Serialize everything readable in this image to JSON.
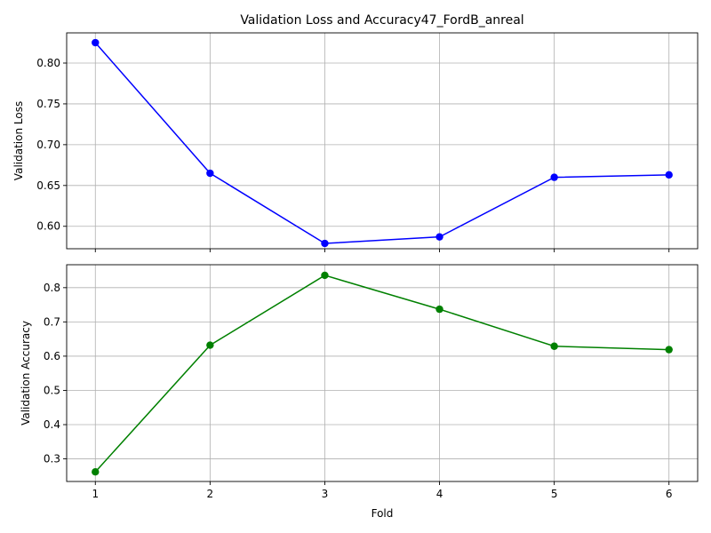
{
  "chart_data": {
    "title": "Validation Loss and Accuracy47_FordB_anreal",
    "xlabel": "Fold",
    "x": [
      1,
      2,
      3,
      4,
      5,
      6
    ],
    "xlim": [
      0.75,
      6.25
    ],
    "grid": true,
    "panels": [
      {
        "type": "line",
        "ylabel": "Validation Loss",
        "ylim": [
          0.5725,
          0.837
        ],
        "yticks": [
          "0.60",
          "0.65",
          "0.70",
          "0.75",
          "0.80"
        ],
        "series": [
          {
            "values": [
              0.825,
              0.665,
              0.579,
              0.587,
              0.66,
              0.663
            ],
            "color": "#0000ff",
            "marker": "circle"
          }
        ]
      },
      {
        "type": "line",
        "ylabel": "Validation Accuracy",
        "ylim": [
          0.234,
          0.867
        ],
        "yticks": [
          "0.3",
          "0.4",
          "0.5",
          "0.6",
          "0.7",
          "0.8"
        ],
        "series": [
          {
            "values": [
              0.262,
              0.632,
              0.836,
              0.737,
              0.629,
              0.619
            ],
            "color": "#008000",
            "marker": "circle"
          }
        ]
      }
    ]
  }
}
